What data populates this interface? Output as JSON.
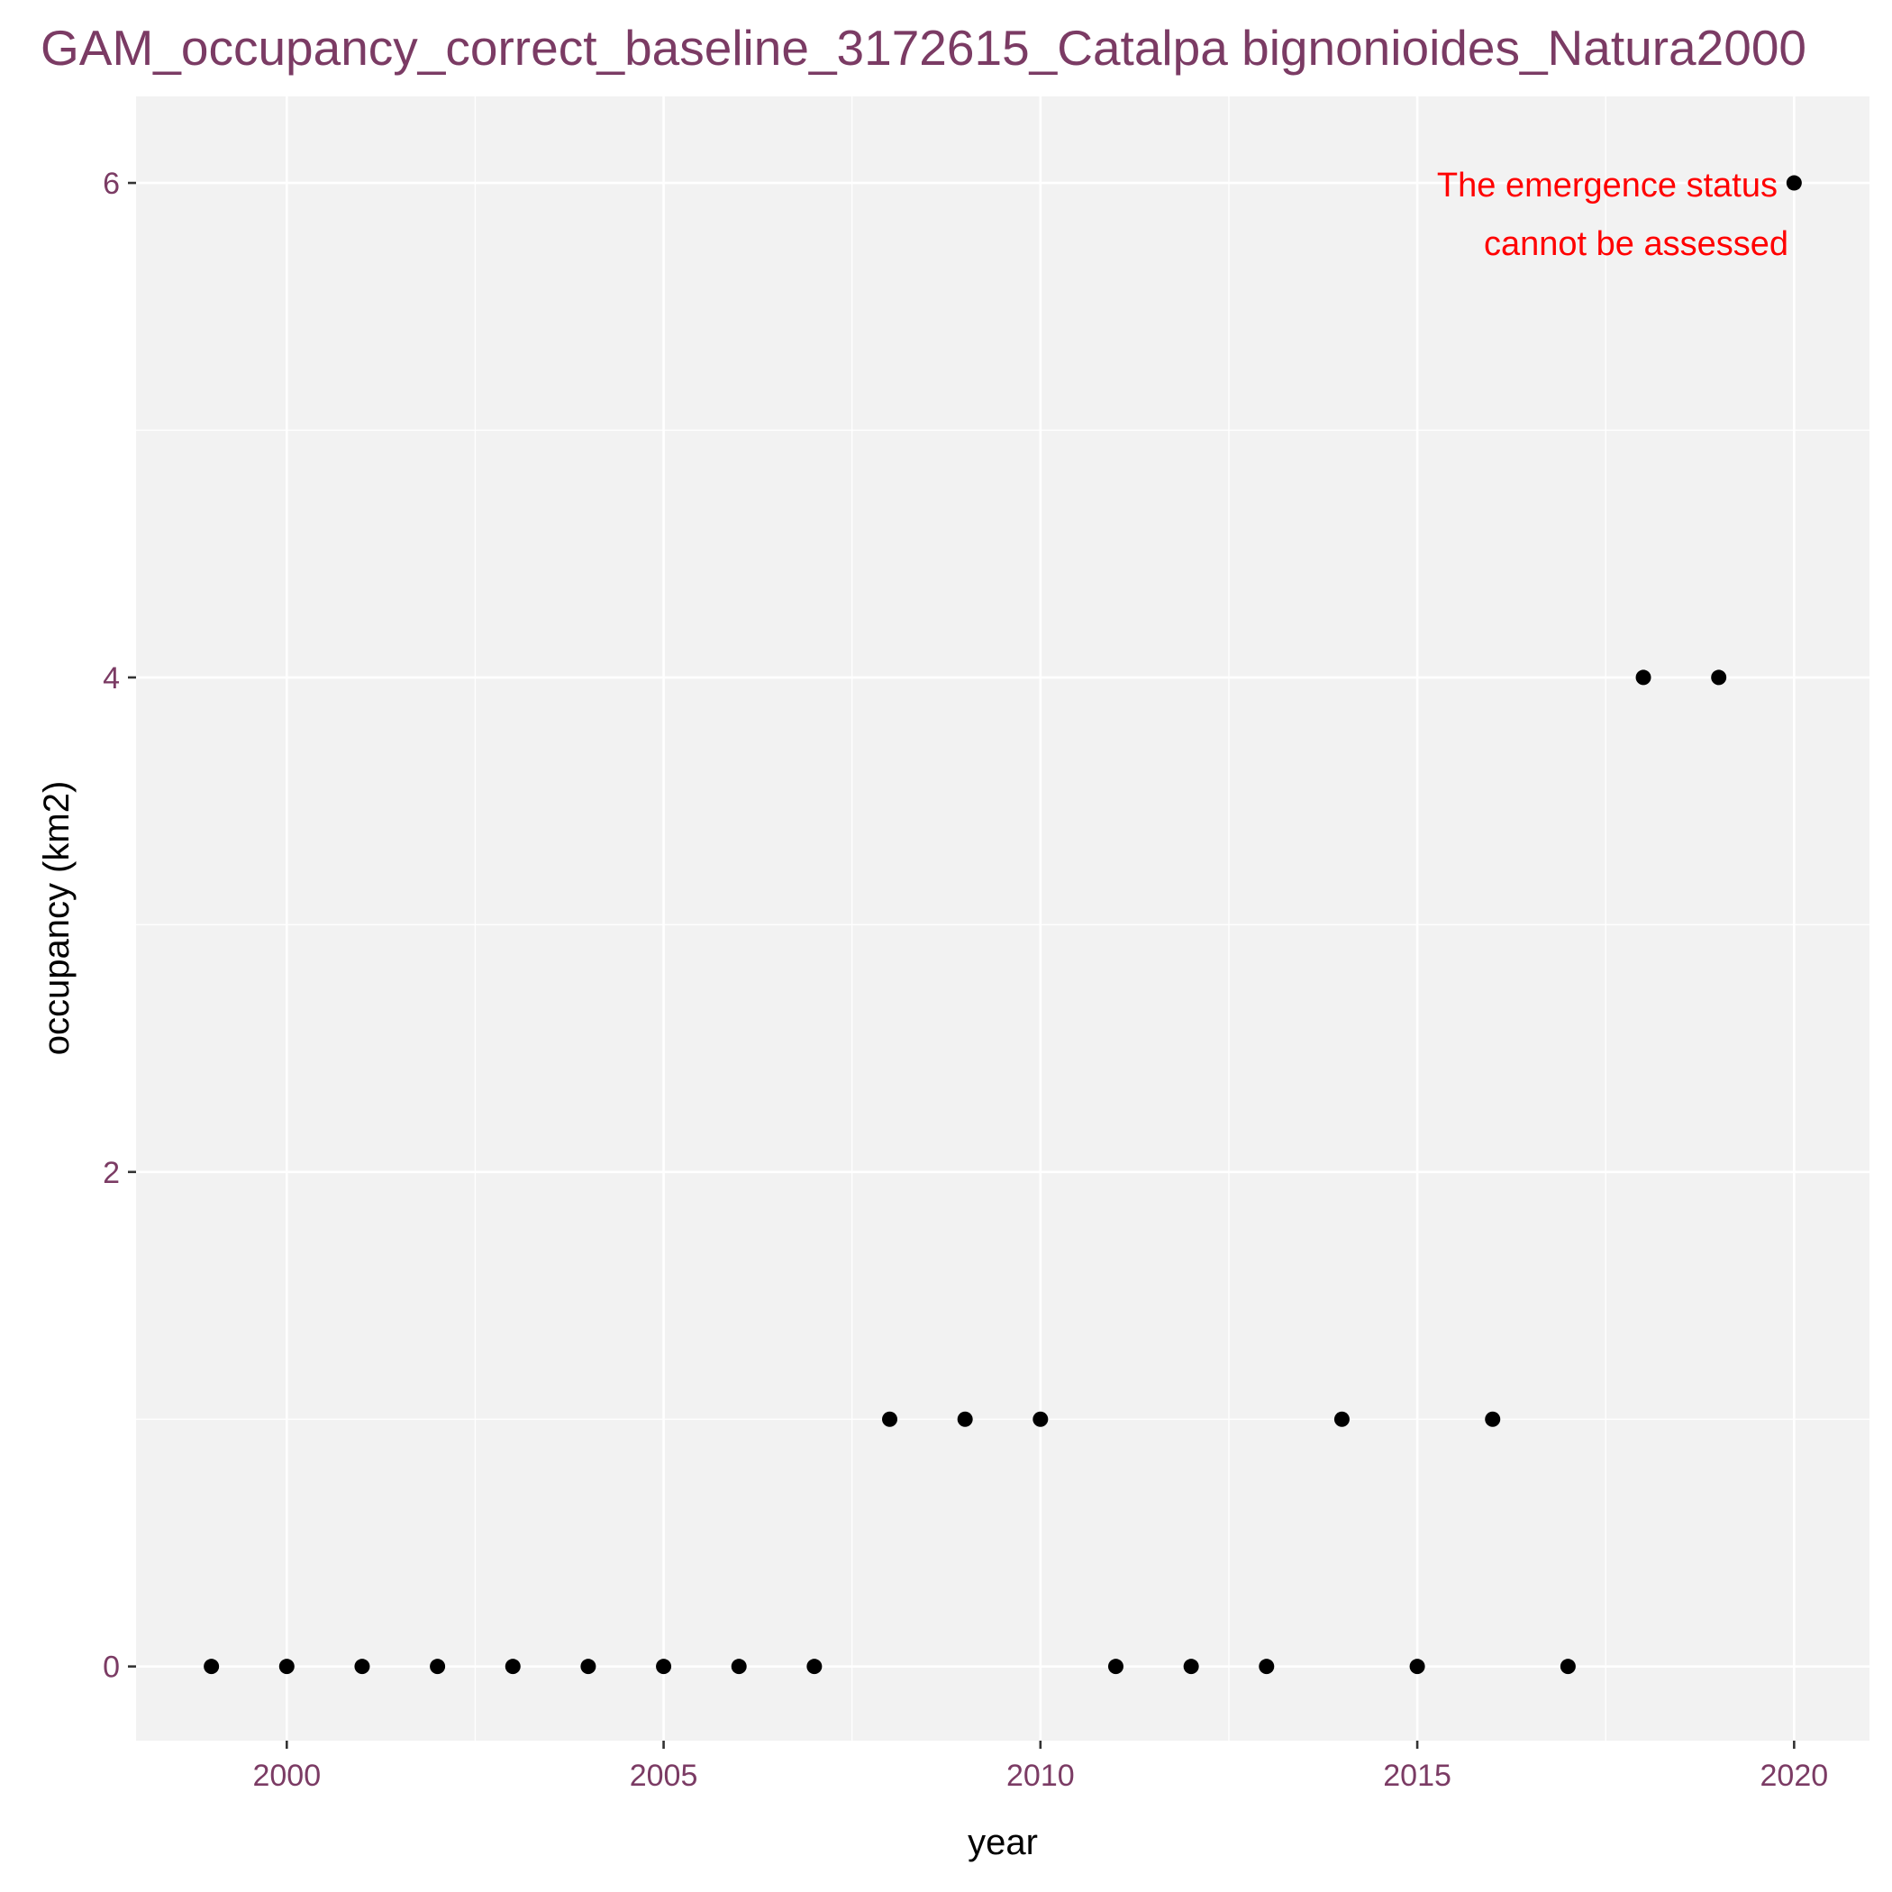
{
  "chart_data": {
    "type": "scatter",
    "title": "GAM_occupancy_correct_baseline_3172615_Catalpa bignonioides_Natura2000",
    "xlabel": "year",
    "ylabel": "occupancy (km2)",
    "xlim": [
      1998,
      2021
    ],
    "ylim": [
      -0.3,
      6.35
    ],
    "x_ticks": [
      2000,
      2005,
      2010,
      2015,
      2020
    ],
    "y_ticks": [
      0,
      2,
      4,
      6
    ],
    "grid": true,
    "legend": "none",
    "annotation": {
      "lines": [
        "The emergence status",
        "cannot be assessed"
      ],
      "color": "#ff0000"
    },
    "series": [
      {
        "x": [
          1999,
          2000,
          2001,
          2002,
          2003,
          2004,
          2005,
          2006,
          2007,
          2008,
          2009,
          2010,
          2011,
          2012,
          2013,
          2014,
          2015,
          2016,
          2017,
          2018,
          2019,
          2020
        ],
        "y": [
          0,
          0,
          0,
          0,
          0,
          0,
          0,
          0,
          0,
          1,
          1,
          1,
          0,
          0,
          0,
          1,
          0,
          1,
          0,
          4,
          4,
          6
        ]
      }
    ],
    "colors": {
      "panel": "#f2f2f2",
      "grid": "#ffffff",
      "title": "#7b3b64",
      "ticks": "#7b3b64",
      "points": "#000000"
    }
  }
}
